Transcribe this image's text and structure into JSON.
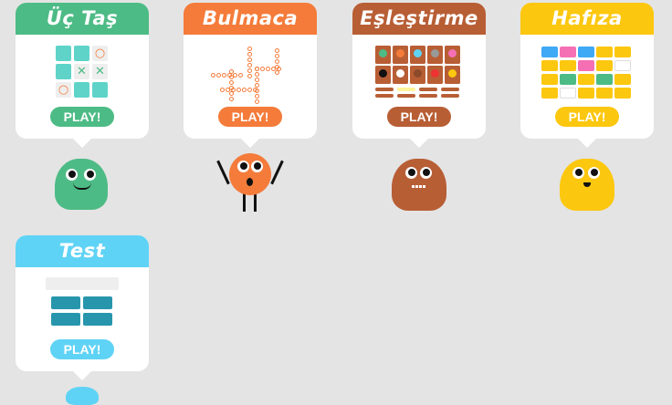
{
  "colors": {
    "background": "#e4e4e4",
    "uc_tas": "#4dbb85",
    "bulmaca": "#f47b3a",
    "eslestirme": "#b85e35",
    "hafiza": "#fcc70f",
    "test": "#5fd3f5"
  },
  "games": [
    {
      "title": "Üç Taş",
      "play": "PLAY!"
    },
    {
      "title": "Bulmaca",
      "play": "PLAY!"
    },
    {
      "title": "Eşleştirme",
      "play": "PLAY!"
    },
    {
      "title": "Hafıza",
      "play": "PLAY!"
    },
    {
      "title": "Test",
      "play": "PLAY!"
    }
  ]
}
